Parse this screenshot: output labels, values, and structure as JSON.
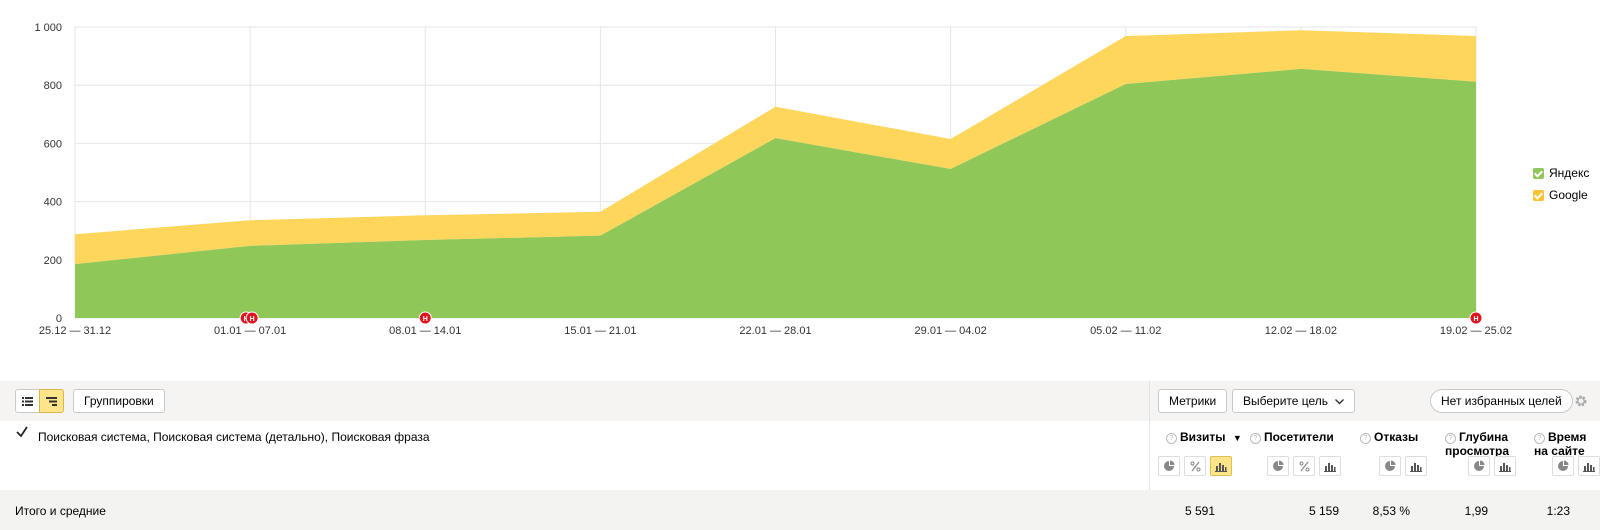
{
  "chart_data": {
    "type": "area",
    "stacked": true,
    "categories": [
      "25.12 — 31.12",
      "01.01 — 07.01",
      "08.01 — 14.01",
      "15.01 — 21.01",
      "22.01 — 28.01",
      "29.01 — 04.02",
      "05.02 — 11.02",
      "12.02 — 18.02",
      "19.02 — 25.02"
    ],
    "series": [
      {
        "name": "Яндекс",
        "color": "#8fc759",
        "values": [
          185,
          248,
          268,
          283,
          618,
          512,
          804,
          856,
          812
        ]
      },
      {
        "name": "Google",
        "color": "#ffd65c",
        "values": [
          103,
          88,
          85,
          82,
          108,
          103,
          165,
          133,
          157
        ]
      }
    ],
    "ylim": [
      0,
      1000
    ],
    "yticks": [
      "0",
      "200",
      "400",
      "600",
      "800",
      "1 000"
    ],
    "grid": true,
    "legend_position": "right",
    "annotation_label": "Н",
    "annotation_categories": [
      1,
      1,
      2,
      8
    ]
  },
  "toolbar": {
    "groupings_label": "Группировки",
    "metrics_label": "Метрики",
    "goal_label": "Выберите цель",
    "favorites_label": "Нет избранных целей"
  },
  "table": {
    "dimensions_label": "Поисковая система, Поисковая система (детально), Поисковая фраза",
    "columns": [
      {
        "label": "Визиты",
        "sorted": "▼"
      },
      {
        "label": "Посетители"
      },
      {
        "label": "Отказы"
      },
      {
        "label1": "Глубина",
        "label2": "просмотра"
      },
      {
        "label1": "Время",
        "label2": "на сайте"
      }
    ],
    "totals": {
      "label": "Итого и средние",
      "values": [
        "5 591",
        "5 159",
        "8,53 %",
        "1,99",
        "1:23"
      ]
    }
  },
  "colors": {
    "yandex": "#8fc759",
    "google": "#ffd65c",
    "annotation": "#e0141e",
    "accent": "#ffe58a"
  }
}
